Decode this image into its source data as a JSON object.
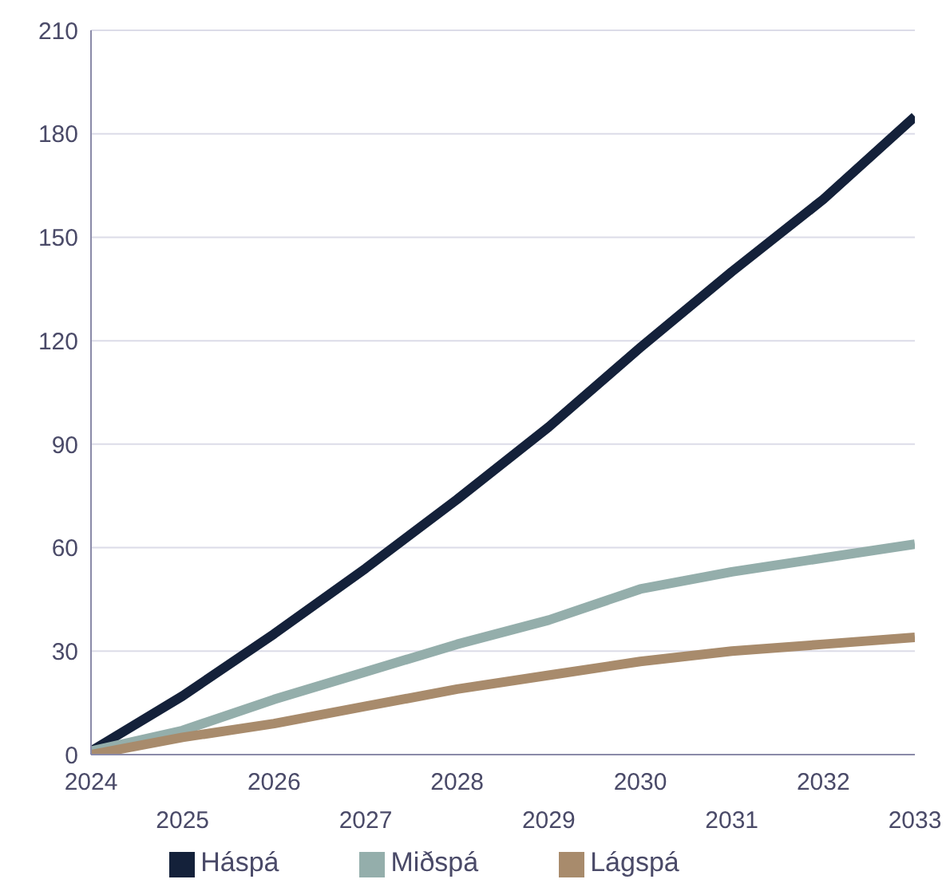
{
  "chart_data": {
    "type": "line",
    "categories": [
      "2024",
      "2025",
      "2026",
      "2027",
      "2028",
      "2029",
      "2030",
      "2031",
      "2032",
      "2033"
    ],
    "series": [
      {
        "name": "Háspá",
        "color": "#14213a",
        "values": [
          1,
          17,
          35,
          54,
          74,
          95,
          118,
          140,
          161,
          185
        ]
      },
      {
        "name": "Miðspá",
        "color": "#94aeab",
        "values": [
          1,
          7,
          16,
          24,
          32,
          39,
          48,
          53,
          57,
          61
        ]
      },
      {
        "name": "Lágspá",
        "color": "#a88b6c",
        "values": [
          0,
          5,
          9,
          14,
          19,
          23,
          27,
          30,
          32,
          34
        ]
      }
    ],
    "ylim": [
      0,
      210
    ],
    "yticks": [
      0,
      30,
      60,
      90,
      120,
      150,
      180,
      210
    ],
    "grid": "y",
    "legend": "bottom",
    "marker": "none",
    "line_style": "solid"
  }
}
